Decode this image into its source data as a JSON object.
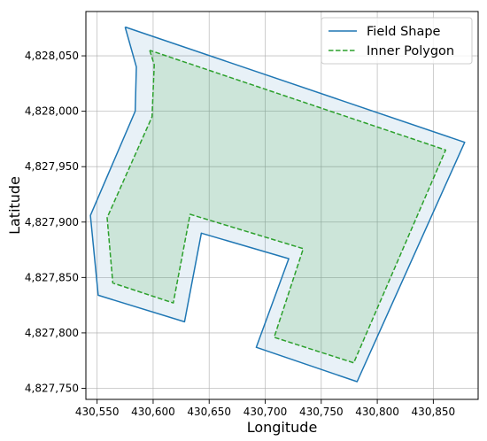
{
  "chart_data": {
    "type": "line",
    "title": "",
    "xlabel": "Longitude",
    "ylabel": "Latitude",
    "xlim": [
      430540,
      430890
    ],
    "ylim": [
      4827740,
      4828090
    ],
    "grid": true,
    "legend_position": "top-right",
    "x_ticks": [
      430550,
      430600,
      430650,
      430700,
      430750,
      430800,
      430850
    ],
    "x_tick_labels": [
      "430,550",
      "430,600",
      "430,650",
      "430,700",
      "430,750",
      "430,800",
      "430,850"
    ],
    "y_ticks": [
      4827750,
      4827800,
      4827850,
      4827900,
      4827950,
      4828000,
      4828050
    ],
    "y_tick_labels": [
      "4,827,750",
      "4,827,800",
      "4,827,850",
      "4,827,900",
      "4,827,950",
      "4,828,000",
      "4,828,050"
    ],
    "series": [
      {
        "name": "Field Shape",
        "style": "solid",
        "color": "#1f77b4",
        "fill": "#1f77b4",
        "fill_opacity": 0.1,
        "points": [
          [
            430575,
            4828076
          ],
          [
            430585,
            4828040
          ],
          [
            430584,
            4828000
          ],
          [
            430544,
            4827906
          ],
          [
            430551,
            4827834
          ],
          [
            430628,
            4827810
          ],
          [
            430643,
            4827890
          ],
          [
            430721,
            4827867
          ],
          [
            430692,
            4827787
          ],
          [
            430782,
            4827756
          ],
          [
            430878,
            4827972
          ],
          [
            430575,
            4828076
          ]
        ]
      },
      {
        "name": "Inner Polygon",
        "style": "dashed",
        "color": "#2ca02c",
        "fill": "#2ca02c",
        "fill_opacity": 0.15,
        "points": [
          [
            430597,
            4828055
          ],
          [
            430601,
            4828042
          ],
          [
            430599,
            4827995
          ],
          [
            430559,
            4827904
          ],
          [
            430564,
            4827845
          ],
          [
            430618,
            4827827
          ],
          [
            430633,
            4827907
          ],
          [
            430734,
            4827876
          ],
          [
            430708,
            4827796
          ],
          [
            430779,
            4827773
          ],
          [
            430861,
            4827965
          ],
          [
            430597,
            4828055
          ]
        ]
      }
    ]
  }
}
